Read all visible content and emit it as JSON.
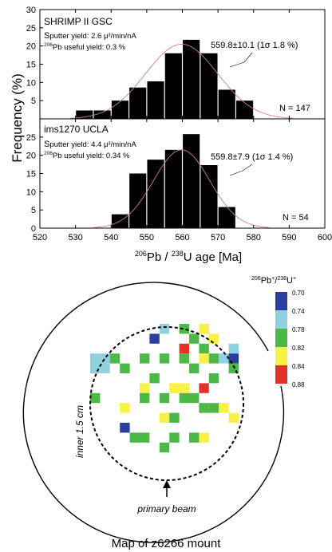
{
  "chart_data": [
    {
      "type": "bar",
      "panel": "SHRIMP II GSC",
      "instrument": "SHRIMP II GSC",
      "sputter_yield": "putter yield: 2.6 μ³/min/nA",
      "sputter_initial": "S",
      "useful_yield_sup": "206",
      "useful_yield": "Pb useful yield: 0.3 %",
      "fit_label": "559.8±10.1 (1σ 1.8 %)",
      "n_label": "N = 147",
      "bin_width": 5,
      "bins": [
        {
          "x": 532.5,
          "y": 2.3
        },
        {
          "x": 537.5,
          "y": 2.3
        },
        {
          "x": 542.5,
          "y": 5.0
        },
        {
          "x": 547.5,
          "y": 8.6
        },
        {
          "x": 552.5,
          "y": 10.3
        },
        {
          "x": 557.5,
          "y": 18.0
        },
        {
          "x": 562.5,
          "y": 21.7
        },
        {
          "x": 567.5,
          "y": 18.0
        },
        {
          "x": 572.5,
          "y": 8.0
        },
        {
          "x": 577.5,
          "y": 5.0
        }
      ],
      "fit": {
        "mean": 559.8,
        "sigma": 10.1,
        "peak": 20.5
      },
      "ylim": [
        0,
        30
      ],
      "yticks": [
        5,
        10,
        15,
        20,
        25,
        30
      ]
    },
    {
      "type": "bar",
      "panel": "ims1270 UCLA",
      "instrument": "ims1270 UCLA",
      "sputter_yield": "putter yield: 4.4 μ³/min/nA",
      "sputter_initial": "S",
      "useful_yield_sup": "206",
      "useful_yield": "Pb useful yield: 0.34 %",
      "fit_label": "559.8±7.9 (1σ 1.4 %)",
      "n_label": "N = 54",
      "bin_width": 5,
      "bins": [
        {
          "x": 542.5,
          "y": 3.8
        },
        {
          "x": 547.5,
          "y": 15.0
        },
        {
          "x": 552.5,
          "y": 18.8
        },
        {
          "x": 557.5,
          "y": 21.5
        },
        {
          "x": 562.5,
          "y": 25.8
        },
        {
          "x": 567.5,
          "y": 17.3
        },
        {
          "x": 572.5,
          "y": 5.8
        }
      ],
      "fit": {
        "mean": 559.8,
        "sigma": 7.9,
        "peak": 21.5
      },
      "ylim": [
        0,
        30
      ],
      "yticks": [
        0,
        5,
        10,
        15,
        20,
        25
      ]
    },
    {
      "type": "heatmap",
      "title": "Map of z6266 mount",
      "inner_label": "inner 1.5 cm",
      "beam_label": "primary beam",
      "legend_title_parts": [
        "206",
        "Pb",
        "+",
        "/",
        "238",
        "U",
        "+"
      ],
      "legend_ticks": [
        "0.70",
        "0.74",
        "0.78",
        "0.82",
        "0.84",
        "0.88"
      ],
      "legend_colors": [
        "#2b3f9a",
        "#8fd1df",
        "#4cb848",
        "#f7f245",
        "#e3302b"
      ],
      "color_scale": {
        "#2b3f9a": "0.70–0.74",
        "#8fd1df": "0.74–0.78",
        "#4cb848": "0.78–0.82",
        "#f7f245": "0.82–0.84",
        "#e3302b": "0.84–0.88"
      },
      "grid_origin": "top-left of square grid",
      "cells": [
        {
          "col": 7,
          "row": 0,
          "color": "#8fd1df"
        },
        {
          "col": 9,
          "row": 0,
          "color": "#4cb848"
        },
        {
          "col": 11,
          "row": 0,
          "color": "#f7f245"
        },
        {
          "col": 6,
          "row": 1,
          "color": "#2b3f9a"
        },
        {
          "col": 10,
          "row": 1,
          "color": "#4cb848"
        },
        {
          "col": 12,
          "row": 1,
          "color": "#f7f245"
        },
        {
          "col": 9,
          "row": 2,
          "color": "#e3302b"
        },
        {
          "col": 11,
          "row": 2,
          "color": "#4cb848"
        },
        {
          "col": 14,
          "row": 2,
          "color": "#8fd1df"
        },
        {
          "col": 0,
          "row": 3,
          "color": "#8fd1df"
        },
        {
          "col": 1,
          "row": 3,
          "color": "#8fd1df"
        },
        {
          "col": 2,
          "row": 3,
          "color": "#4cb848"
        },
        {
          "col": 5,
          "row": 3,
          "color": "#4cb848"
        },
        {
          "col": 7,
          "row": 3,
          "color": "#4cb848"
        },
        {
          "col": 9,
          "row": 3,
          "color": "#4cb848"
        },
        {
          "col": 11,
          "row": 3,
          "color": "#f7f245"
        },
        {
          "col": 12,
          "row": 3,
          "color": "#4cb848"
        },
        {
          "col": 13,
          "row": 3,
          "color": "#8fd1df"
        },
        {
          "col": 14,
          "row": 3,
          "color": "#2b3f9a"
        },
        {
          "col": 0,
          "row": 4,
          "color": "#8fd1df"
        },
        {
          "col": 1,
          "row": 4,
          "color": "#8fd1df"
        },
        {
          "col": 3,
          "row": 4,
          "color": "#4cb848"
        },
        {
          "col": 10,
          "row": 4,
          "color": "#4cb848"
        },
        {
          "col": 14,
          "row": 4,
          "color": "#4cb848"
        },
        {
          "col": 6,
          "row": 5,
          "color": "#4cb848"
        },
        {
          "col": 12,
          "row": 5,
          "color": "#4cb848"
        },
        {
          "col": 5,
          "row": 6,
          "color": "#f7f245"
        },
        {
          "col": 8,
          "row": 6,
          "color": "#f7f245"
        },
        {
          "col": 9,
          "row": 6,
          "color": "#f7f245"
        },
        {
          "col": 11,
          "row": 6,
          "color": "#e3302b"
        },
        {
          "col": 0,
          "row": 7,
          "color": "#4cb848"
        },
        {
          "col": 5,
          "row": 7,
          "color": "#4cb848"
        },
        {
          "col": 7,
          "row": 7,
          "color": "#4cb848"
        },
        {
          "col": 9,
          "row": 7,
          "color": "#4cb848"
        },
        {
          "col": 10,
          "row": 7,
          "color": "#4cb848"
        },
        {
          "col": 3,
          "row": 8,
          "color": "#f7f245"
        },
        {
          "col": 11,
          "row": 8,
          "color": "#4cb848"
        },
        {
          "col": 12,
          "row": 8,
          "color": "#4cb848"
        },
        {
          "col": 13,
          "row": 8,
          "color": "#f7f245"
        },
        {
          "col": 7,
          "row": 9,
          "color": "#f7f245"
        },
        {
          "col": 8,
          "row": 9,
          "color": "#4cb848"
        },
        {
          "col": 14,
          "row": 9,
          "color": "#f7f245"
        },
        {
          "col": 3,
          "row": 10,
          "color": "#2b3f9a"
        },
        {
          "col": 4,
          "row": 11,
          "color": "#4cb848"
        },
        {
          "col": 5,
          "row": 11,
          "color": "#4cb848"
        },
        {
          "col": 8,
          "row": 11,
          "color": "#4cb848"
        },
        {
          "col": 10,
          "row": 11,
          "color": "#4cb848"
        },
        {
          "col": 11,
          "row": 11,
          "color": "#f7f245"
        },
        {
          "col": 7,
          "row": 12,
          "color": "#4cb848"
        }
      ]
    }
  ],
  "x_axis": {
    "label_sup1": "206",
    "label_mid": "Pb / ",
    "label_sup2": "238",
    "label_end": "U age [Ma]",
    "min": 520,
    "max": 600,
    "ticks": [
      520,
      530,
      540,
      550,
      560,
      570,
      580,
      590,
      600
    ]
  },
  "y_axis": {
    "label": "Frequency (%)"
  }
}
